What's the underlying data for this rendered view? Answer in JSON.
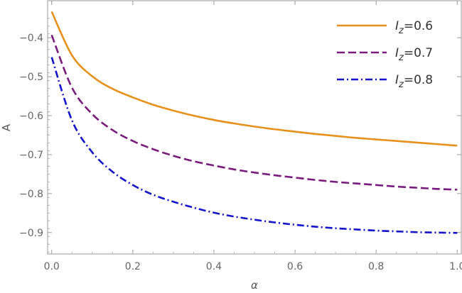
{
  "chart_data": {
    "type": "line",
    "title": "",
    "xlabel": "α",
    "ylabel": "A",
    "xlim": [
      -0.01,
      1.01
    ],
    "ylim": [
      -0.955,
      -0.305
    ],
    "xticks": [
      0.0,
      0.2,
      0.4,
      0.6,
      0.8,
      1.0
    ],
    "xtick_labels": [
      "0.0",
      "0.2",
      "0.4",
      "0.6",
      "0.8",
      "1.0"
    ],
    "yticks": [
      -0.4,
      -0.5,
      -0.6,
      -0.7,
      -0.8,
      -0.9
    ],
    "ytick_labels": [
      "−0.4",
      "−0.5",
      "−0.6",
      "−0.7",
      "−0.8",
      "−0.9"
    ],
    "grid": false,
    "legend_position": "top-right",
    "x": [
      0.0,
      0.05,
      0.1,
      0.15,
      0.2,
      0.25,
      0.3,
      0.35,
      0.4,
      0.45,
      0.5,
      0.55,
      0.6,
      0.65,
      0.7,
      0.75,
      0.8,
      0.85,
      0.9,
      0.95,
      1.0
    ],
    "series": [
      {
        "legend_symbol": "I",
        "legend_sub": "z",
        "legend_value": "=0.6",
        "color": "#E8901C",
        "dash": "solid",
        "values": [
          -0.333,
          -0.445,
          -0.499,
          -0.531,
          -0.553,
          -0.572,
          -0.587,
          -0.6,
          -0.611,
          -0.62,
          -0.628,
          -0.635,
          -0.641,
          -0.647,
          -0.652,
          -0.657,
          -0.661,
          -0.665,
          -0.669,
          -0.673,
          -0.677
        ]
      },
      {
        "legend_symbol": "I",
        "legend_sub": "z",
        "legend_value": "=0.7",
        "color": "#7B1A7E",
        "dash": "dashed",
        "values": [
          -0.393,
          -0.528,
          -0.596,
          -0.637,
          -0.665,
          -0.686,
          -0.703,
          -0.717,
          -0.728,
          -0.738,
          -0.746,
          -0.753,
          -0.759,
          -0.765,
          -0.77,
          -0.774,
          -0.778,
          -0.782,
          -0.785,
          -0.788,
          -0.79
        ]
      },
      {
        "legend_symbol": "I",
        "legend_sub": "z",
        "legend_value": "=0.8",
        "color": "#1414CC",
        "dash": "dashdot",
        "values": [
          -0.45,
          -0.612,
          -0.694,
          -0.744,
          -0.778,
          -0.803,
          -0.821,
          -0.836,
          -0.849,
          -0.859,
          -0.867,
          -0.874,
          -0.88,
          -0.885,
          -0.889,
          -0.892,
          -0.895,
          -0.897,
          -0.899,
          -0.9,
          -0.901
        ]
      }
    ]
  }
}
